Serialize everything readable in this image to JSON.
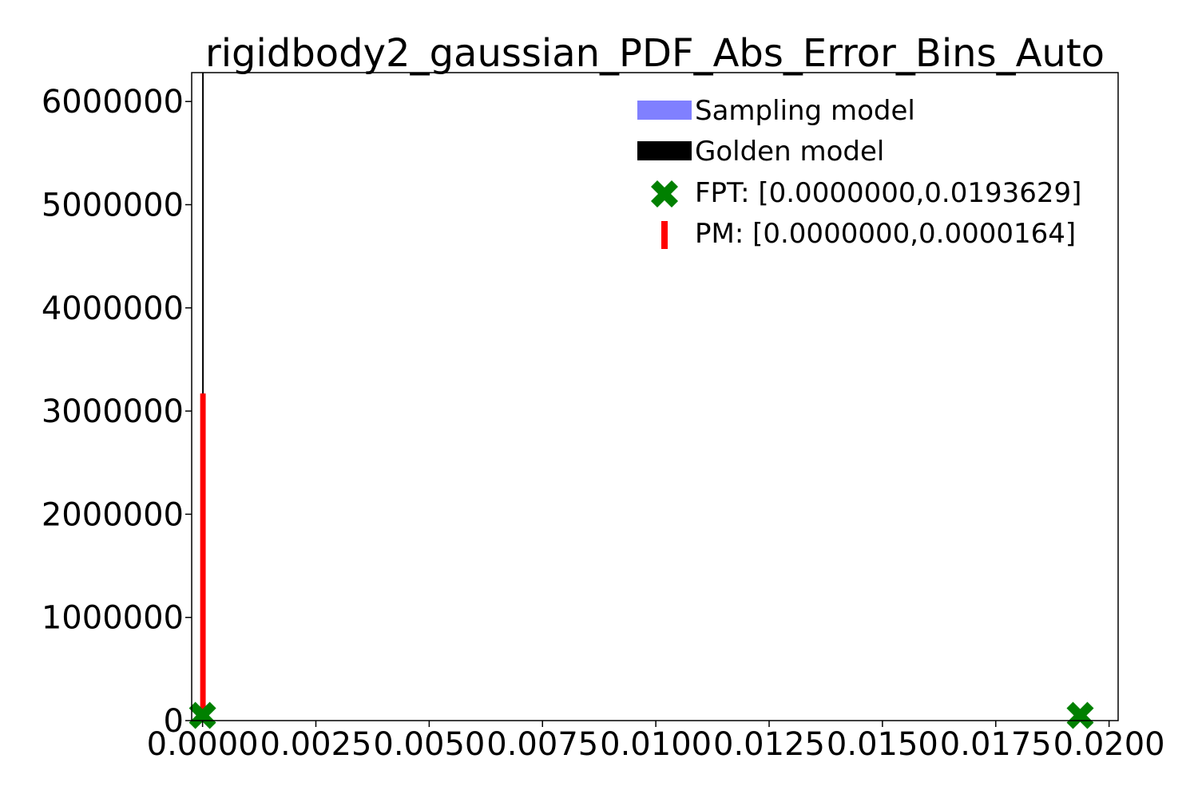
{
  "chart_data": {
    "type": "bar",
    "title": "rigidbody2_gaussian_PDF_Abs_Error_Bins_Auto",
    "xlabel": "",
    "ylabel": "",
    "xlim": [
      -0.00024,
      0.0202
    ],
    "ylim": [
      0,
      6280000
    ],
    "x_ticks": [
      0.0,
      0.0025,
      0.005,
      0.0075,
      0.01,
      0.0125,
      0.015,
      0.0175,
      0.02
    ],
    "x_tick_labels": [
      "0.0000",
      "0.0025",
      "0.0050",
      "0.0075",
      "0.0100",
      "0.0125",
      "0.0150",
      "0.0175",
      "0.0200"
    ],
    "y_ticks": [
      0,
      1000000,
      2000000,
      3000000,
      4000000,
      5000000,
      6000000
    ],
    "y_tick_labels": [
      "0",
      "1000000",
      "2000000",
      "3000000",
      "4000000",
      "5000000",
      "6000000"
    ],
    "legend_position": "top-right",
    "grid": false,
    "series": [
      {
        "name": "Sampling model",
        "kind": "histogram",
        "color": "#8080ff",
        "values": []
      },
      {
        "name": "Golden model",
        "kind": "histogram",
        "color": "#000000",
        "bins": [
          {
            "x": 8.2e-06,
            "y": 6280000
          }
        ]
      },
      {
        "name": "FPT: [0.0000000,0.0193629]",
        "kind": "markers",
        "marker": "X",
        "color": "#008000",
        "points": [
          {
            "x": 0.0,
            "y": 50000
          },
          {
            "x": 0.0193629,
            "y": 50000
          }
        ]
      },
      {
        "name": "PM: [0.0000000,0.0000164]",
        "kind": "vlines",
        "color": "#ff0000",
        "lines": [
          {
            "x": 0.0,
            "y": 3170000
          },
          {
            "x": 1.64e-05,
            "y": 3170000
          }
        ]
      }
    ]
  }
}
